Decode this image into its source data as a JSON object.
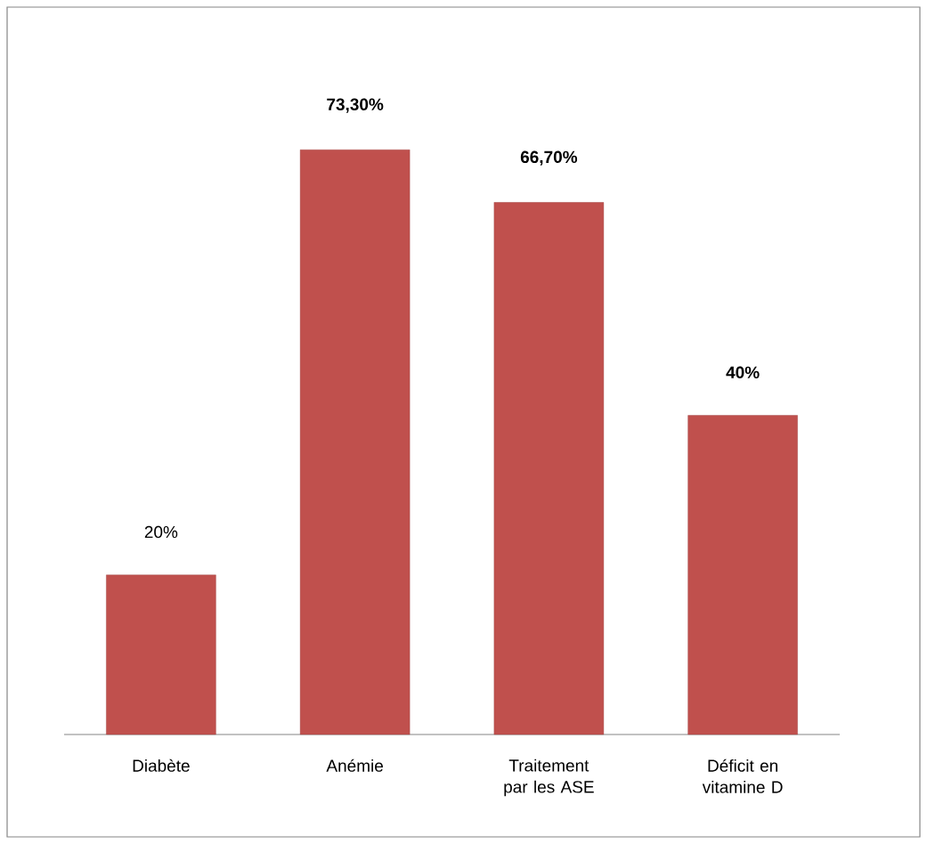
{
  "chart_data": {
    "type": "bar",
    "categories": [
      "Diabète",
      "Anémie",
      "Traitement par les ASE",
      "Déficit en vitamine D"
    ],
    "values": [
      20,
      73.3,
      66.7,
      40
    ],
    "color": "#c0504d",
    "value_labels": [
      "20%",
      "**73,30%**",
      "**66,70%**",
      "**40%**"
    ]
  }
}
